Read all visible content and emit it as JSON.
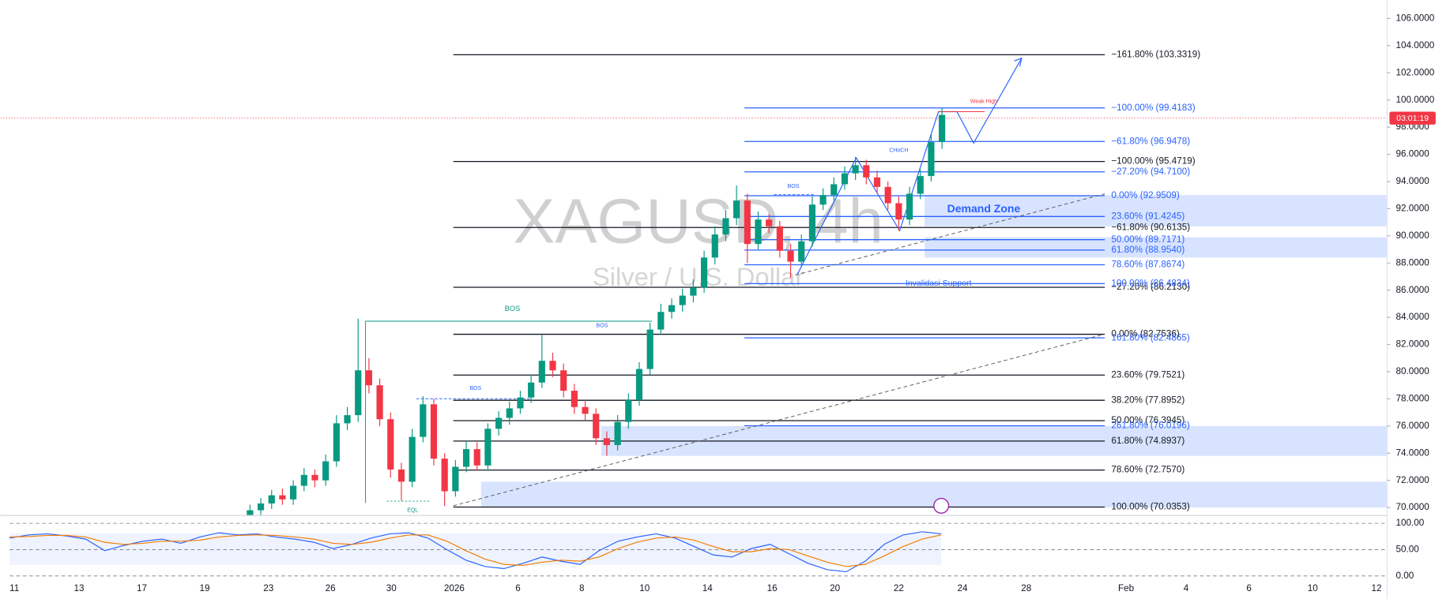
{
  "chart_data": {
    "type": "candlestick",
    "watermark": "XAGUSD, 4h",
    "subtitle": "Silver / U.S. Dollar",
    "annotations": {
      "bos1": "BOS",
      "bos2": "BOS",
      "bos3": "BOS",
      "bos4": "BOS",
      "choch": "CHoCH",
      "weak_high": "Weak High",
      "eql": "EQL",
      "invalidation": "Invalidasi Support",
      "demand": "Demand Zone"
    },
    "countdown": "03:01:19",
    "up_color": "#089981",
    "down_color": "#f23645",
    "ylim": [
      69.45,
      107.36
    ],
    "yticks": [
      {
        "value": 106,
        "label": "106.0000"
      },
      {
        "value": 104,
        "label": "104.0000"
      },
      {
        "value": 102,
        "label": "102.0000"
      },
      {
        "value": 100,
        "label": "100.0000"
      },
      {
        "value": 98,
        "label": "98.0000"
      },
      {
        "value": 96,
        "label": "96.0000"
      },
      {
        "value": 94,
        "label": "94.0000"
      },
      {
        "value": 92,
        "label": "92.0000"
      },
      {
        "value": 90,
        "label": "90.0000"
      },
      {
        "value": 88,
        "label": "88.0000"
      },
      {
        "value": 86,
        "label": "86.0000"
      },
      {
        "value": 84,
        "label": "84.0000"
      },
      {
        "value": 82,
        "label": "82.0000"
      },
      {
        "value": 80,
        "label": "80.0000"
      },
      {
        "value": 78,
        "label": "78.0000"
      },
      {
        "value": 76,
        "label": "76.0000"
      },
      {
        "value": 74,
        "label": "74.0000"
      },
      {
        "value": 72,
        "label": "72.0000"
      },
      {
        "value": 70,
        "label": "70.0000"
      }
    ],
    "time_labels": [
      "11",
      "13",
      "17",
      "19",
      "23",
      "26",
      "30",
      "2026",
      "6",
      "8",
      "10",
      "14",
      "16",
      "20",
      "22",
      "24",
      "28",
      "Feb",
      "4",
      "6",
      "10",
      "12"
    ],
    "candles": {
      "open": [
        69.3,
        69.8,
        70.3,
        70.9,
        70.6,
        71.6,
        72.4,
        72.0,
        73.4,
        76.2,
        76.8,
        80.1,
        79.0,
        76.5,
        72.8,
        71.9,
        75.2,
        77.6,
        73.6,
        71.2,
        73.0,
        74.3,
        73.1,
        75.8,
        76.6,
        77.3,
        78.1,
        79.2,
        80.8,
        80.1,
        78.6,
        77.4,
        76.9,
        75.1,
        74.6,
        76.3,
        77.9,
        80.2,
        83.1,
        84.4,
        84.9,
        85.6,
        86.2,
        88.4,
        90.1,
        91.3,
        92.6,
        89.4,
        91.2,
        90.7,
        88.9,
        88.1,
        89.6,
        92.3,
        93.0,
        93.8,
        94.6,
        95.2,
        94.3,
        93.6,
        92.4,
        91.2,
        93.1,
        94.4,
        96.9
      ],
      "high": [
        70.2,
        70.7,
        71.3,
        71.4,
        72.0,
        72.9,
        72.8,
        73.9,
        76.8,
        77.4,
        83.9,
        81.0,
        79.5,
        77.0,
        73.3,
        75.8,
        78.2,
        78.0,
        74.0,
        73.5,
        74.9,
        74.8,
        76.2,
        77.1,
        77.8,
        78.6,
        79.8,
        82.7,
        81.4,
        80.6,
        79.1,
        77.9,
        77.3,
        75.6,
        76.8,
        78.4,
        80.7,
        83.6,
        85.0,
        85.4,
        86.1,
        86.8,
        88.9,
        90.7,
        91.9,
        93.7,
        93.1,
        91.8,
        91.6,
        91.1,
        89.4,
        90.1,
        92.9,
        93.5,
        94.3,
        95.1,
        95.8,
        95.6,
        94.8,
        94.0,
        92.9,
        93.6,
        94.9,
        97.5,
        99.4
      ],
      "low": [
        69.0,
        69.4,
        69.9,
        70.2,
        70.2,
        71.2,
        71.5,
        71.6,
        73.0,
        75.7,
        76.3,
        78.4,
        76.0,
        72.2,
        70.5,
        71.5,
        74.8,
        73.1,
        70.1,
        70.8,
        72.6,
        72.7,
        72.7,
        75.3,
        76.1,
        76.9,
        77.7,
        78.8,
        79.6,
        78.1,
        76.9,
        76.4,
        74.6,
        73.8,
        74.2,
        75.8,
        77.5,
        79.8,
        82.7,
        83.9,
        84.4,
        85.1,
        85.8,
        87.9,
        89.6,
        90.8,
        88.0,
        89.0,
        90.2,
        88.4,
        86.9,
        87.7,
        89.2,
        91.9,
        92.6,
        93.4,
        94.1,
        93.8,
        93.1,
        91.9,
        90.4,
        90.8,
        92.7,
        94.0,
        96.4
      ],
      "close": [
        69.8,
        70.3,
        70.9,
        70.6,
        71.6,
        72.4,
        72.0,
        73.4,
        76.2,
        76.8,
        80.1,
        79.0,
        76.5,
        72.8,
        71.9,
        75.2,
        77.6,
        73.6,
        71.2,
        73.0,
        74.3,
        73.1,
        75.8,
        76.6,
        77.3,
        78.1,
        79.2,
        80.8,
        80.1,
        78.6,
        77.4,
        76.9,
        75.1,
        74.6,
        76.3,
        77.9,
        80.2,
        83.1,
        84.4,
        84.9,
        85.6,
        86.2,
        88.4,
        90.1,
        91.3,
        92.6,
        89.4,
        91.2,
        90.7,
        88.9,
        88.1,
        89.6,
        92.3,
        93.0,
        93.8,
        94.6,
        95.2,
        94.3,
        93.6,
        92.4,
        91.2,
        93.1,
        94.4,
        96.9,
        98.9
      ]
    },
    "zones": [
      {
        "top": 93.0,
        "bottom": 90.7
      },
      {
        "top": 89.9,
        "bottom": 88.4
      },
      {
        "top": 76.0,
        "bottom": 73.8
      },
      {
        "top": 71.9,
        "bottom": 70.0
      }
    ],
    "fib_black": {
      "color": "#131722",
      "levels": [
        {
          "value": 103.3319,
          "label": "−161.80% (103.3319)"
        },
        {
          "value": 95.4719,
          "label": "−100.00% (95.4719)"
        },
        {
          "value": 90.6135,
          "label": "−61.80% (90.6135)"
        },
        {
          "value": 86.213,
          "label": "−27.20% (86.2130)"
        },
        {
          "value": 82.7536,
          "label": "0.00% (82.7536)"
        },
        {
          "value": 79.7521,
          "label": "23.60% (79.7521)"
        },
        {
          "value": 77.8952,
          "label": "38.20% (77.8952)"
        },
        {
          "value": 76.3945,
          "label": "50.00% (76.3945)"
        },
        {
          "value": 74.8937,
          "label": "61.80% (74.8937)"
        },
        {
          "value": 72.757,
          "label": "78.60% (72.7570)"
        },
        {
          "value": 70.0353,
          "label": "100.00% (70.0353)"
        }
      ]
    },
    "fib_blue": {
      "color": "#2962ff",
      "levels": [
        {
          "value": 99.4183,
          "label": "−100.00% (99.4183)"
        },
        {
          "value": 96.9478,
          "label": "−61.80% (96.9478)"
        },
        {
          "value": 94.71,
          "label": "−27.20% (94.7100)"
        },
        {
          "value": 92.9509,
          "label": "0.00% (92.9509)"
        },
        {
          "value": 91.4245,
          "label": "23.60% (91.4245)"
        },
        {
          "value": 89.7171,
          "label": "50.00% (89.7171)"
        },
        {
          "value": 88.954,
          "label": "61.80% (88.9540)"
        },
        {
          "value": 87.8674,
          "label": "78.60% (87.8674)"
        },
        {
          "value": 86.4834,
          "label": "100.00% (86.4834)"
        },
        {
          "value": 82.4865,
          "label": "161.80% (82.4865)"
        },
        {
          "value": 76.0196,
          "label": "261.80% (76.0196)"
        }
      ]
    },
    "rsi": {
      "ylim": [
        -14,
        112.3
      ],
      "yticks": [
        {
          "value": 100,
          "label": "100.00"
        },
        {
          "value": 50,
          "label": "50.00"
        },
        {
          "value": 0,
          "label": "0.00"
        }
      ],
      "series": [
        {
          "color": "#2962ff",
          "values": [
            72,
            78,
            80,
            76,
            70,
            48,
            58,
            66,
            70,
            62,
            74,
            82,
            78,
            80,
            74,
            70,
            64,
            52,
            60,
            72,
            80,
            82,
            72,
            50,
            30,
            18,
            14,
            24,
            36,
            28,
            22,
            48,
            66,
            74,
            80,
            72,
            56,
            40,
            36,
            52,
            60,
            42,
            24,
            12,
            8,
            28,
            60,
            78,
            84,
            80
          ]
        },
        {
          "color": "#f57c00",
          "values": [
            74,
            75,
            77,
            77,
            74,
            64,
            60,
            62,
            66,
            66,
            68,
            74,
            77,
            78,
            77,
            74,
            70,
            62,
            60,
            64,
            72,
            78,
            78,
            66,
            48,
            32,
            22,
            20,
            26,
            30,
            28,
            36,
            52,
            64,
            72,
            74,
            68,
            56,
            46,
            46,
            52,
            50,
            38,
            26,
            18,
            22,
            38,
            56,
            70,
            78
          ]
        }
      ]
    }
  }
}
